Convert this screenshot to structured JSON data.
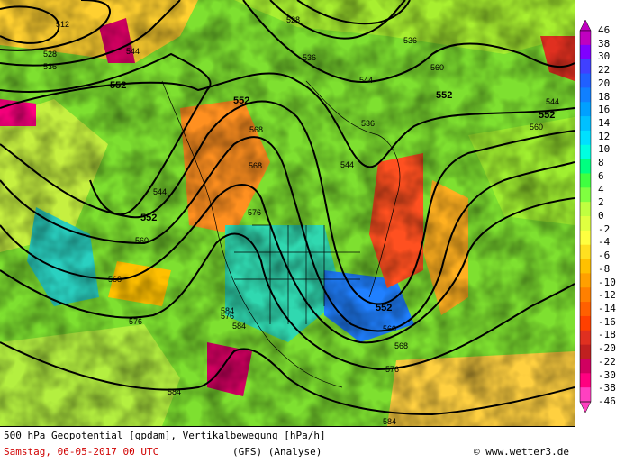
{
  "caption": {
    "line1": "500 hPa Geopotential [gpdam], Vertikalbewegung [hPa/h]",
    "date": "Samstag, 06-05-2017  00 UTC",
    "model": "(GFS)  (Analyse)",
    "credit": "www.wetter3.de"
  },
  "colorbar": {
    "ticks": [
      "46",
      "38",
      "30",
      "22",
      "20",
      "18",
      "16",
      "14",
      "12",
      "10",
      "8",
      "6",
      "4",
      "2",
      "0",
      "-2",
      "-4",
      "-6",
      "-8",
      "-10",
      "-12",
      "-14",
      "-16",
      "-18",
      "-20",
      "-22",
      "-30",
      "-38",
      "-46"
    ],
    "colors": [
      "#c000c0",
      "#8000ff",
      "#4040ff",
      "#2060ff",
      "#1080ff",
      "#00a0ff",
      "#00c0ff",
      "#00e0ff",
      "#00ffe0",
      "#00ff80",
      "#40ff40",
      "#80ff40",
      "#c0ff40",
      "#e0ff40",
      "#ffff40",
      "#ffe020",
      "#ffc000",
      "#ffa000",
      "#ff8000",
      "#ff6000",
      "#ff4000",
      "#e03020",
      "#c02020",
      "#d00060",
      "#ff0080",
      "#ff40c0"
    ]
  },
  "contours": [
    {
      "label": "512"
    },
    {
      "label": "528"
    },
    {
      "label": "536"
    },
    {
      "label": "544"
    },
    {
      "label": "552"
    },
    {
      "label": "560"
    },
    {
      "label": "568"
    },
    {
      "label": "576"
    },
    {
      "label": "584"
    }
  ],
  "contour_labels": [
    "512",
    "528",
    "536",
    "544",
    "552",
    "552",
    "552",
    "536",
    "528",
    "544",
    "568",
    "552",
    "576",
    "560",
    "568",
    "576",
    "584",
    "544",
    "536",
    "536",
    "560",
    "544",
    "568",
    "576",
    "552",
    "560",
    "568",
    "576",
    "584",
    "584",
    "584",
    "560",
    "576"
  ]
}
